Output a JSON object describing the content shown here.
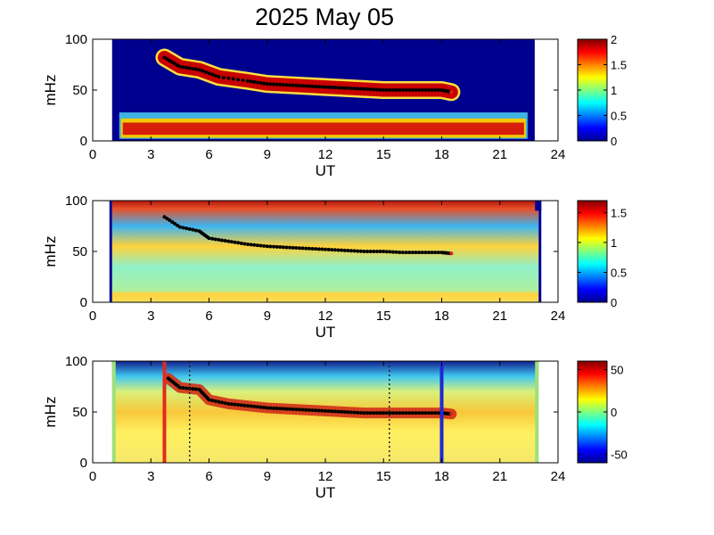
{
  "figure": {
    "title": "2025 May 05"
  },
  "chart_data": [
    {
      "type": "heatmap",
      "panel": "top",
      "xlabel": "UT",
      "ylabel": "mHz",
      "xlim": [
        0,
        24
      ],
      "ylim": [
        0,
        100
      ],
      "xticks": [
        "0",
        "3",
        "6",
        "9",
        "12",
        "15",
        "18",
        "21",
        "24"
      ],
      "yticks": [
        "0",
        "50",
        "100"
      ],
      "data_x_range": [
        1.0,
        22.8
      ],
      "colorbar": {
        "min": 0,
        "max": 2,
        "ticks": [
          "0",
          "0.5",
          "1",
          "1.5",
          "2"
        ]
      },
      "ridge_trace": {
        "x": [
          3.7,
          4.5,
          5.5,
          6.5,
          8,
          9,
          10,
          11,
          12,
          13,
          14,
          15,
          16,
          17,
          18,
          18.5
        ],
        "y": [
          82,
          73,
          70,
          63,
          59,
          56,
          55,
          54,
          53,
          52,
          51,
          50,
          50,
          50,
          50,
          48
        ]
      },
      "low_frequency_band": {
        "y_range": [
          5,
          25
        ]
      }
    },
    {
      "type": "heatmap",
      "panel": "middle",
      "xlabel": "UT",
      "ylabel": "mHz",
      "xlim": [
        0,
        24
      ],
      "ylim": [
        0,
        100
      ],
      "xticks": [
        "0",
        "3",
        "6",
        "9",
        "12",
        "15",
        "18",
        "21",
        "24"
      ],
      "yticks": [
        "0",
        "50",
        "100"
      ],
      "data_x_range": [
        1.0,
        23.0
      ],
      "colorbar": {
        "min": 0,
        "max": 1.7,
        "ticks": [
          "0",
          "0.5",
          "1",
          "1.5"
        ]
      },
      "ridge_trace": {
        "x": [
          3.7,
          4.5,
          5.5,
          6.0,
          7,
          8,
          9,
          10,
          11,
          12,
          13,
          14,
          15,
          16,
          17,
          18,
          18.5
        ],
        "y": [
          84,
          74,
          70,
          63,
          60,
          57,
          55,
          54,
          53,
          52,
          51,
          50,
          50,
          49,
          49,
          49,
          48
        ]
      }
    },
    {
      "type": "heatmap",
      "panel": "bottom",
      "xlabel": "UT",
      "ylabel": "mHz",
      "xlim": [
        0,
        24
      ],
      "ylim": [
        0,
        100
      ],
      "xticks": [
        "0",
        "3",
        "6",
        "9",
        "12",
        "15",
        "18",
        "21",
        "24"
      ],
      "yticks": [
        "0",
        "50",
        "100"
      ],
      "data_x_range": [
        1.0,
        23.0
      ],
      "colorbar": {
        "min": -60,
        "max": 60,
        "ticks": [
          "50",
          "0",
          "-50"
        ]
      },
      "ridge_trace": {
        "x": [
          3.9,
          4.5,
          5.5,
          6.0,
          7,
          8,
          9,
          10,
          11,
          12,
          13,
          14,
          15,
          16,
          17,
          18,
          18.5
        ],
        "y": [
          83,
          74,
          72,
          62,
          58,
          56,
          54,
          53,
          52,
          51,
          50,
          49,
          49,
          49,
          49,
          49,
          48
        ]
      },
      "markers": [
        {
          "style": "solid",
          "color": "#e52a1c",
          "x": 3.7
        },
        {
          "style": "dotted",
          "color": "#222222",
          "x": 5.0
        },
        {
          "style": "dotted",
          "color": "#222222",
          "x": 15.3
        },
        {
          "style": "solid",
          "color": "#1e28d2",
          "x": 18.0
        }
      ]
    }
  ]
}
